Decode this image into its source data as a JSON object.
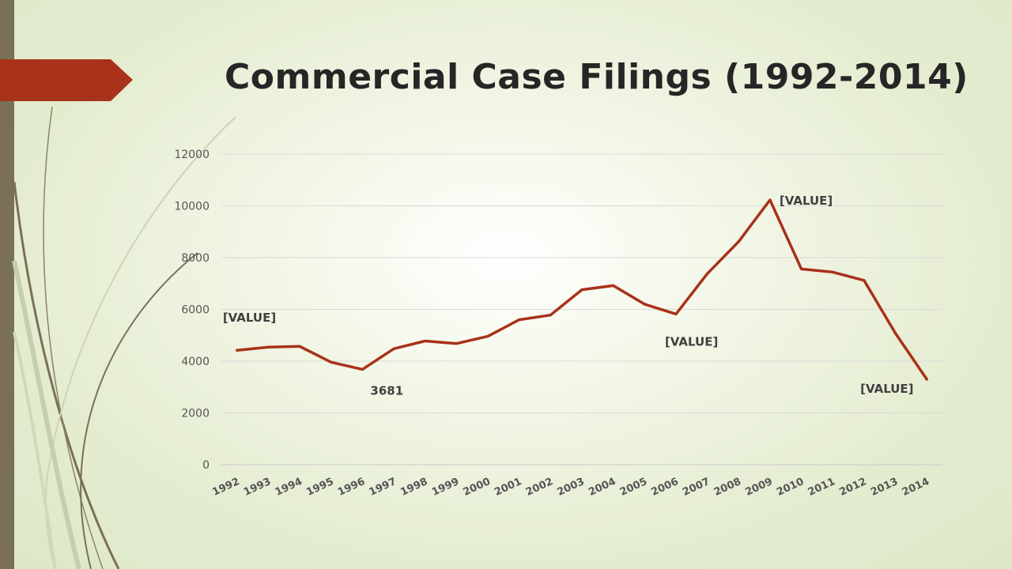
{
  "slide": {
    "title": "Commercial Case Filings (1992-2014)",
    "colors": {
      "accent": "#a8321a",
      "side_bar": "#7a7056",
      "background": "#e4ecd0",
      "text": "#262626"
    }
  },
  "chart_data": {
    "type": "line",
    "title": "",
    "xlabel": "",
    "ylabel": "",
    "categories": [
      "1992",
      "1993",
      "1994",
      "1995",
      "1996",
      "1997",
      "1998",
      "1999",
      "2000",
      "2001",
      "2002",
      "2003",
      "2004",
      "2005",
      "2006",
      "2007",
      "2008",
      "2009",
      "2010",
      "2011",
      "2012",
      "2013",
      "2014"
    ],
    "series": [
      {
        "values": [
          4420,
          4540,
          4570,
          3960,
          3681,
          4480,
          4780,
          4680,
          4960,
          5600,
          5780,
          6760,
          6920,
          6200,
          5820,
          7380,
          8620,
          10230,
          7560,
          7440,
          7120,
          5080,
          3300
        ],
        "color": "#a8321a"
      }
    ],
    "ylim": [
      0,
      12000
    ],
    "yticks": [
      0,
      2000,
      4000,
      6000,
      8000,
      10000,
      12000
    ],
    "grid": true,
    "legend": "none",
    "data_labels": [
      {
        "category": "1992",
        "text": "[VALUE]",
        "position": "above"
      },
      {
        "category": "1996",
        "text": "3681",
        "position": "below-right"
      },
      {
        "category": "2006",
        "text": "[VALUE]",
        "position": "below"
      },
      {
        "category": "2009",
        "text": "[VALUE]",
        "position": "right"
      },
      {
        "category": "2014",
        "text": "[VALUE]",
        "position": "below-left"
      }
    ]
  }
}
